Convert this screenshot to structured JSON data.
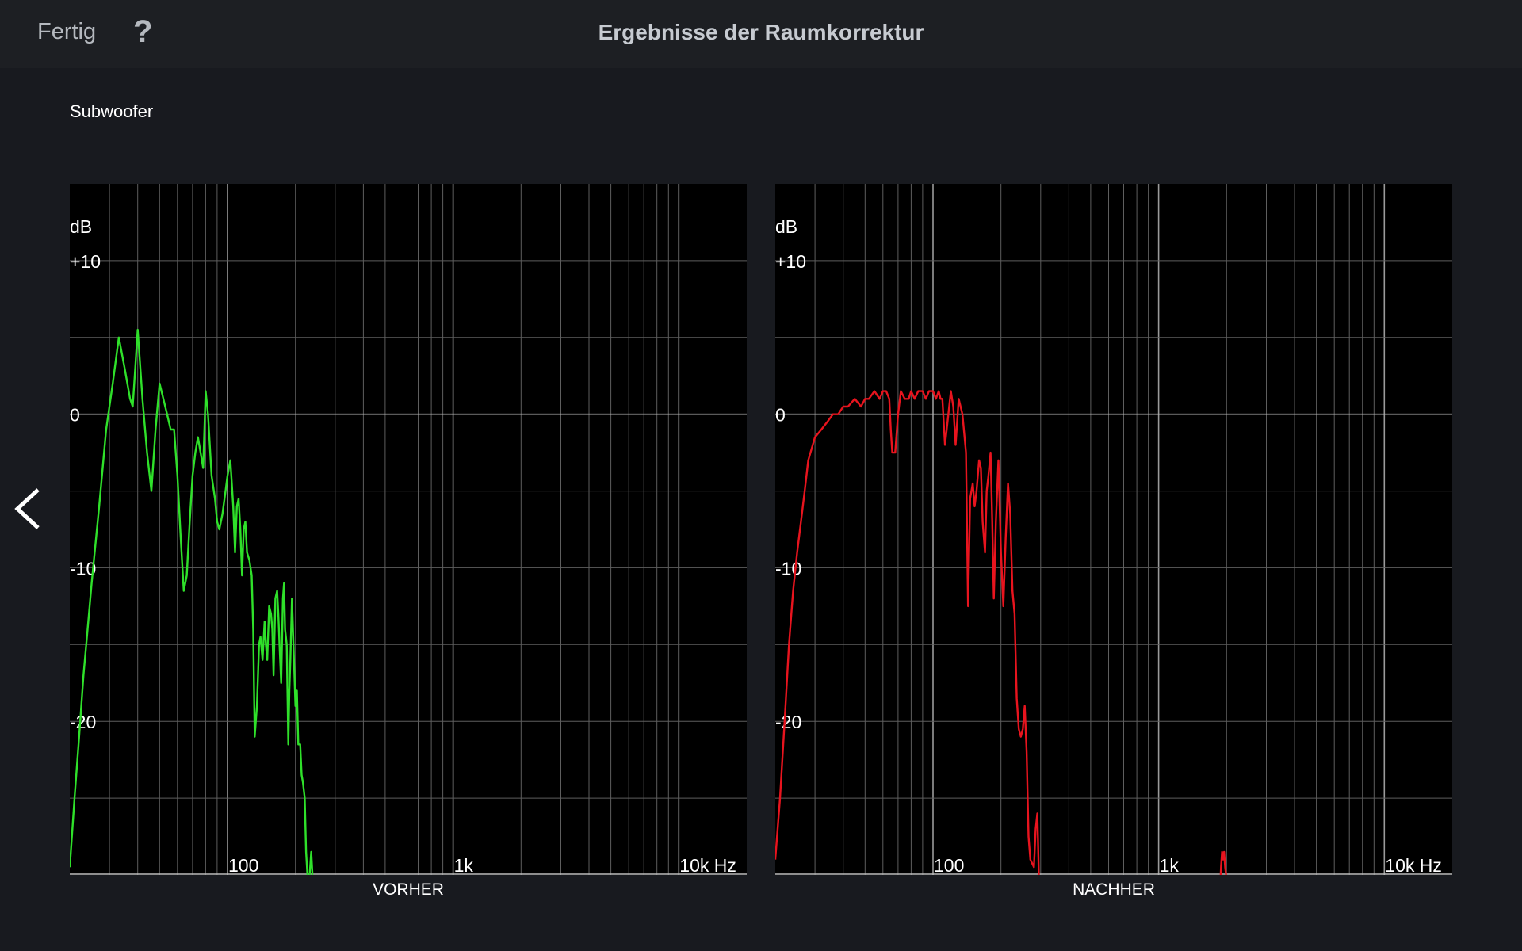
{
  "header": {
    "done_label": "Fertig",
    "help_label": "?",
    "title": "Ergebnisse der Raumkorrektur"
  },
  "section_label": "Subwoofer",
  "icons": {
    "back": "chevron-left-icon"
  },
  "colors": {
    "background": "#181a1f",
    "header_background": "#1d1f23",
    "plot_background": "#000000",
    "grid": "#5e5e5e",
    "before_curve": "#2fe02a",
    "after_curve": "#e8141e"
  },
  "chart_data": [
    {
      "type": "line",
      "caption": "VORHER",
      "ylabel": "dB",
      "xunit": "Hz",
      "xscale": "log",
      "xlim": [
        20,
        20000
      ],
      "ylim": [
        -30,
        15
      ],
      "y_ticks": [
        {
          "value": 10,
          "label": "+10"
        },
        {
          "value": 0,
          "label": "0"
        },
        {
          "value": -10,
          "label": "-10"
        },
        {
          "value": -20,
          "label": "-20"
        }
      ],
      "x_ticks": [
        {
          "value": 100,
          "label": "100"
        },
        {
          "value": 1000,
          "label": "1k"
        },
        {
          "value": 10000,
          "label": "10k Hz"
        }
      ],
      "grid": true,
      "series": [
        {
          "color": "#2fe02a",
          "x": [
            20,
            21,
            22,
            23,
            24,
            25,
            27,
            29,
            31,
            33,
            35,
            37,
            38,
            39,
            40,
            42,
            44,
            46,
            48,
            50,
            52,
            54,
            56,
            58,
            60,
            62,
            64,
            66,
            68,
            70,
            72,
            74,
            76,
            78,
            80,
            82,
            85,
            88,
            90,
            92,
            95,
            98,
            100,
            103,
            106,
            108,
            110,
            112,
            114,
            116,
            118,
            120,
            122,
            125,
            128,
            130,
            132,
            135,
            138,
            140,
            143,
            146,
            148,
            150,
            153,
            156,
            158,
            160,
            163,
            166,
            168,
            170,
            173,
            176,
            178,
            180,
            183,
            186,
            188,
            190,
            193,
            196,
            200,
            203,
            206,
            210,
            213,
            216,
            220,
            223,
            226,
            230,
            235,
            240
          ],
          "y": [
            -29.5,
            -25,
            -21,
            -17,
            -14,
            -11,
            -6,
            -1,
            2,
            5,
            3,
            1,
            0.5,
            3,
            5.5,
            1,
            -2.5,
            -5,
            -1,
            2,
            1,
            0,
            -1,
            -1,
            -4,
            -8,
            -11.5,
            -10.5,
            -7,
            -4,
            -2.5,
            -1.5,
            -2.5,
            -3.5,
            1.5,
            0,
            -4,
            -5.5,
            -7,
            -7.5,
            -6.5,
            -5,
            -4,
            -3,
            -6,
            -9,
            -6,
            -5.5,
            -7.5,
            -10.5,
            -7.5,
            -7,
            -9,
            -9.5,
            -10.5,
            -14,
            -21,
            -19,
            -15,
            -14.5,
            -16,
            -13.5,
            -15,
            -16,
            -12.5,
            -13,
            -14,
            -17,
            -12,
            -11.5,
            -13,
            -15,
            -17.5,
            -12,
            -11,
            -14,
            -15,
            -21.5,
            -18,
            -16,
            -12,
            -15,
            -19,
            -18,
            -21.5,
            -21.5,
            -23.5,
            -24,
            -25,
            -28.5,
            -30,
            -30.5,
            -28.5,
            -31
          ]
        }
      ]
    },
    {
      "type": "line",
      "caption": "NACHHER",
      "ylabel": "dB",
      "xunit": "Hz",
      "xscale": "log",
      "xlim": [
        20,
        20000
      ],
      "ylim": [
        -30,
        15
      ],
      "y_ticks": [
        {
          "value": 10,
          "label": "+10"
        },
        {
          "value": 0,
          "label": "0"
        },
        {
          "value": -10,
          "label": "-10"
        },
        {
          "value": -20,
          "label": "-20"
        }
      ],
      "x_ticks": [
        {
          "value": 100,
          "label": "100"
        },
        {
          "value": 1000,
          "label": "1k"
        },
        {
          "value": 10000,
          "label": "10k Hz"
        }
      ],
      "grid": true,
      "series": [
        {
          "color": "#e8141e",
          "x": [
            20,
            21,
            22,
            23,
            24,
            25,
            26,
            27,
            28,
            30,
            32,
            34,
            36,
            38,
            40,
            42,
            45,
            48,
            50,
            52,
            55,
            58,
            60,
            62,
            64,
            65,
            66,
            68,
            70,
            72,
            75,
            78,
            80,
            83,
            86,
            90,
            93,
            96,
            100,
            103,
            106,
            108,
            110,
            113,
            116,
            120,
            123,
            126,
            130,
            135,
            140,
            143,
            146,
            150,
            153,
            156,
            160,
            163,
            166,
            170,
            173,
            176,
            180,
            183,
            186,
            190,
            195,
            200,
            205,
            210,
            215,
            220,
            225,
            230,
            235,
            240,
            245,
            250,
            255,
            260,
            265,
            270,
            280,
            285,
            290,
            295,
            300,
            305,
            310
          ],
          "y": [
            -29,
            -25,
            -20,
            -15,
            -11.5,
            -9,
            -7,
            -5,
            -3,
            -1.5,
            -1,
            -0.5,
            0,
            0,
            0.5,
            0.5,
            1,
            0.5,
            1,
            1,
            1.5,
            1,
            1.5,
            1.5,
            1,
            -1,
            -2.5,
            -2.5,
            0,
            1.5,
            1,
            1,
            1.5,
            1,
            1.5,
            1.5,
            1,
            1.5,
            1.5,
            1,
            1.5,
            1,
            1,
            -2,
            -0.5,
            1.5,
            0.5,
            -2,
            1,
            0,
            -2.5,
            -12.5,
            -5.5,
            -4.5,
            -6,
            -5,
            -3,
            -3.5,
            -7,
            -9,
            -5,
            -4,
            -2.5,
            -7,
            -12,
            -7,
            -3,
            -9,
            -12.5,
            -8,
            -4.5,
            -6.5,
            -11.5,
            -13,
            -18.5,
            -20.5,
            -21,
            -20.5,
            -19,
            -22,
            -27.5,
            -29,
            -29.5,
            -27,
            -26,
            -30.5,
            -31,
            -33,
            -31
          ]
        },
        {
          "color": "#e8141e",
          "x": [
            1870,
            1890,
            1910,
            1930,
            1950,
            1970,
            1990,
            2010
          ],
          "y": [
            -31,
            -29.5,
            -28.5,
            -29,
            -28.5,
            -29.5,
            -30,
            -31
          ]
        }
      ]
    }
  ]
}
